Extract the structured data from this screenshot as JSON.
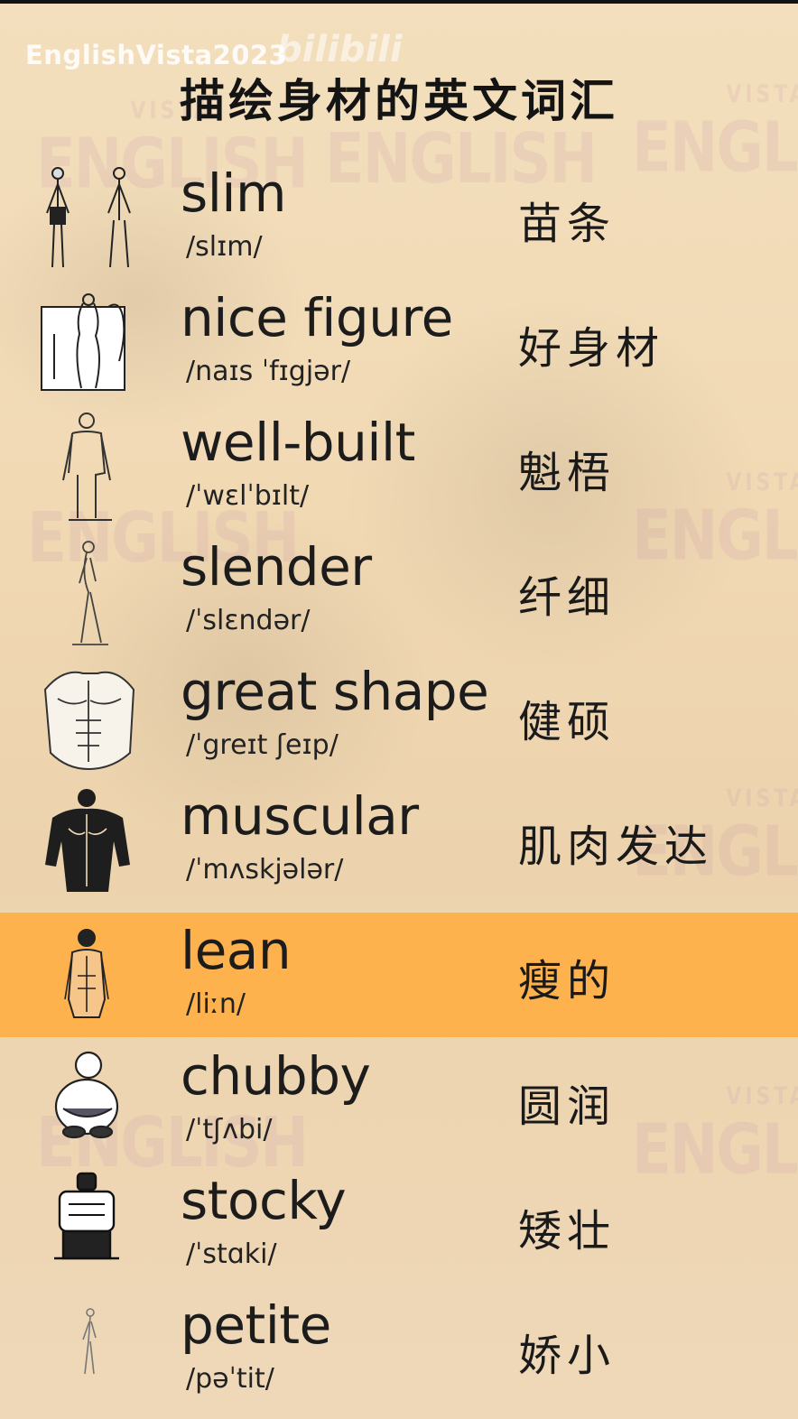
{
  "header": {
    "user_watermark": "EnglishVista2023",
    "site_watermark": "bilibili",
    "title": "描绘身材的英文词汇"
  },
  "background": {
    "watermark_main": "ENGLISH",
    "watermark_small": "VISTA"
  },
  "colors": {
    "highlight": "#fdb24e",
    "text": "#1c1c1c",
    "background": "#f1d9b4"
  },
  "words": [
    {
      "word": "slim",
      "ipa": "/slɪm/",
      "meaning": "苗条",
      "icon": "slim-figure-icon"
    },
    {
      "word": "nice figure",
      "ipa": "/naɪs ˈfɪgjər/",
      "meaning": "好身材",
      "icon": "nice-figure-icon"
    },
    {
      "word": "well-built",
      "ipa": "/ˈwɛlˈbɪlt/",
      "meaning": "魁梧",
      "icon": "well-built-figure-icon"
    },
    {
      "word": "slender",
      "ipa": "/ˈslɛndər/",
      "meaning": "纤细",
      "icon": "slender-figure-icon"
    },
    {
      "word": "great shape",
      "ipa": "/ˈgreɪt ʃeɪp/",
      "meaning": "健硕",
      "icon": "great-shape-torso-icon"
    },
    {
      "word": "muscular",
      "ipa": "/ˈmʌskjələr/",
      "meaning": "肌肉发达",
      "icon": "muscular-back-icon"
    },
    {
      "word": "lean",
      "ipa": "/liːn/",
      "meaning": "瘦的",
      "icon": "lean-figure-icon"
    },
    {
      "word": "chubby",
      "ipa": "/ˈtʃʌbi/",
      "meaning": "圆润",
      "icon": "chubby-figure-icon"
    },
    {
      "word": "stocky",
      "ipa": "/ˈstɑki/",
      "meaning": "矮壮",
      "icon": "stocky-figure-icon"
    },
    {
      "word": "petite",
      "ipa": "/pəˈtit/",
      "meaning": "娇小",
      "icon": "petite-figure-icon"
    }
  ]
}
